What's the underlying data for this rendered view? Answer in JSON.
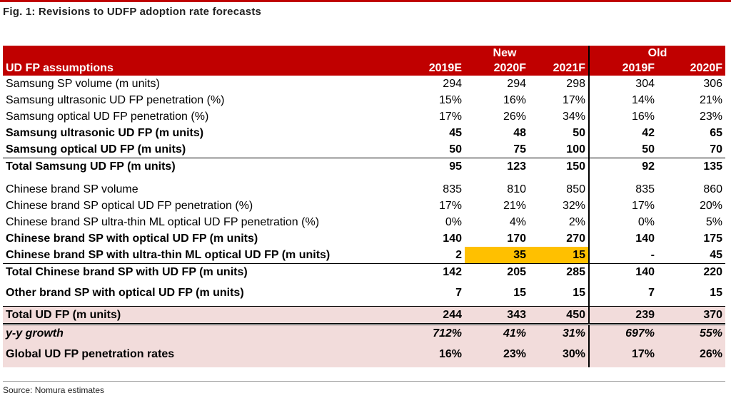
{
  "figure": {
    "title": "Fig. 1: Revisions to UDFP adoption rate forecasts",
    "source": "Source: Nomura estimates"
  },
  "header": {
    "group_new": "New",
    "group_old": "Old",
    "row_label": "UD FP assumptions",
    "cols": [
      "2019E",
      "2020F",
      "2021F",
      "2019F",
      "2020F"
    ]
  },
  "rows": [
    {
      "label": "Samsung SP volume (m units)",
      "values": [
        "294",
        "294",
        "298",
        "304",
        "306"
      ]
    },
    {
      "label": "Samsung ultrasonic UD FP penetration (%)",
      "values": [
        "15%",
        "16%",
        "17%",
        "14%",
        "21%"
      ]
    },
    {
      "label": "Samsung optical UD FP penetration (%)",
      "values": [
        "17%",
        "26%",
        "34%",
        "16%",
        "23%"
      ]
    },
    {
      "label": "Samsung ultrasonic UD FP (m units)",
      "values": [
        "45",
        "48",
        "50",
        "42",
        "65"
      ]
    },
    {
      "label": "Samsung optical UD FP  (m units)",
      "values": [
        "50",
        "75",
        "100",
        "50",
        "70"
      ]
    },
    {
      "label": "Total Samsung UD FP (m units)",
      "values": [
        "95",
        "123",
        "150",
        "92",
        "135"
      ]
    },
    {
      "label": "Chinese brand SP volume",
      "values": [
        "835",
        "810",
        "850",
        "835",
        "860"
      ]
    },
    {
      "label": "Chinese brand SP optical UD FP penetration (%)",
      "values": [
        "17%",
        "21%",
        "32%",
        "17%",
        "20%"
      ]
    },
    {
      "label": "Chinese brand SP ultra-thin ML optical UD FP penetration (%)",
      "values": [
        "0%",
        "4%",
        "2%",
        "0%",
        "5%"
      ]
    },
    {
      "label": "Chinese brand SP with optical UD FP (m units)",
      "values": [
        "140",
        "170",
        "270",
        "140",
        "175"
      ]
    },
    {
      "label": "Chinese brand SP with ultra-thin ML optical UD FP (m units)",
      "values": [
        "2",
        "35",
        "15",
        "-",
        "45"
      ]
    },
    {
      "label": "Total Chinese brand SP with UD FP (m units)",
      "values": [
        "142",
        "205",
        "285",
        "140",
        "220"
      ]
    },
    {
      "label": "Other brand SP with optical UD FP (m units)",
      "values": [
        "7",
        "15",
        "15",
        "7",
        "15"
      ]
    },
    {
      "label": "Total UD FP (m units)",
      "values": [
        "244",
        "343",
        "450",
        "239",
        "370"
      ]
    },
    {
      "label": "y-y growth",
      "values": [
        "712%",
        "41%",
        "31%",
        "697%",
        "55%"
      ]
    },
    {
      "label": "Global UD FP penetration rates",
      "values": [
        "16%",
        "23%",
        "30%",
        "17%",
        "26%"
      ]
    }
  ],
  "colors": {
    "header_red": "#c00000",
    "highlight": "#ffc000",
    "total_pink": "#f2dcdb"
  }
}
